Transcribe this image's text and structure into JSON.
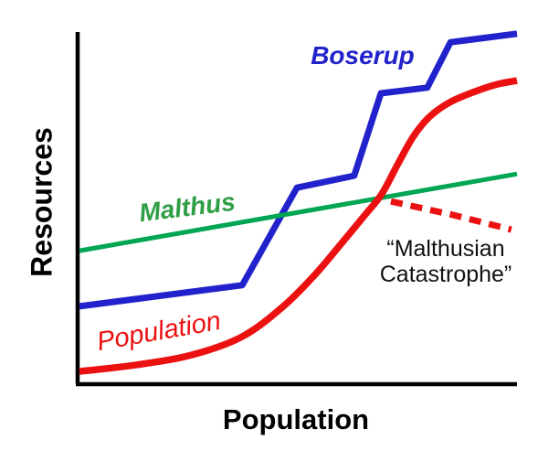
{
  "figure": {
    "x_axis_label": "Population",
    "y_axis_label": "Resources",
    "background": "#ffffff",
    "axis_color": "#000000"
  },
  "labels": {
    "boserup": {
      "text": "Boserup",
      "color": "#2222CC"
    },
    "malthus": {
      "text": "Malthus",
      "color": "#2F9E45"
    },
    "population_curve": {
      "text": "Population",
      "color": "#EC1111"
    },
    "catastrophe_line1": "“Malthusian",
    "catastrophe_line2": "Catastrophe”"
  },
  "chart_data": {
    "type": "line",
    "title": "",
    "xlabel": "Population",
    "ylabel": "Resources",
    "xlim": [
      0,
      100
    ],
    "ylim": [
      0,
      100
    ],
    "grid": false,
    "axis_ticks": "none",
    "legend_position": "inline-labels",
    "series": [
      {
        "id": "boserup",
        "name": "Boserup",
        "color": "#2222CC",
        "width": 7,
        "style": "solid",
        "smooth": false,
        "points": [
          [
            0,
            22.1
          ],
          [
            37.2,
            28.1
          ],
          [
            49.7,
            55.8
          ],
          [
            62.8,
            59.2
          ],
          [
            68.9,
            82.6
          ],
          [
            79.5,
            84.2
          ],
          [
            84.8,
            97.1
          ],
          [
            100,
            99.5
          ]
        ]
      },
      {
        "id": "malthus",
        "name": "Malthus",
        "color": "#00A651",
        "width": 5,
        "style": "solid",
        "smooth": false,
        "points": [
          [
            0,
            37.9
          ],
          [
            100,
            59.7
          ]
        ]
      },
      {
        "id": "malthusian-catastrophe",
        "name": "Malthusian Catastrophe",
        "color": "#EC1111",
        "width": 7,
        "style": "dashed",
        "dash": "13 9",
        "smooth": false,
        "points": [
          [
            71.2,
            51.9
          ],
          [
            85.2,
            48.1
          ],
          [
            98.7,
            43.9
          ]
        ]
      },
      {
        "id": "population",
        "name": "Population",
        "color": "#EC1111",
        "width": 7.5,
        "style": "solid",
        "smooth": true,
        "points": [
          [
            0,
            3.6
          ],
          [
            13.2,
            5.5
          ],
          [
            25.7,
            8.3
          ],
          [
            37.2,
            13.5
          ],
          [
            46.6,
            22.1
          ],
          [
            53.9,
            31.2
          ],
          [
            60.1,
            40.3
          ],
          [
            65.3,
            48.1
          ],
          [
            69.1,
            54.0
          ],
          [
            72.7,
            62.3
          ],
          [
            76.2,
            70.1
          ],
          [
            79.9,
            75.8
          ],
          [
            84.6,
            80.0
          ],
          [
            90.4,
            83.1
          ],
          [
            95.6,
            85.2
          ],
          [
            100,
            86.2
          ]
        ]
      }
    ]
  }
}
